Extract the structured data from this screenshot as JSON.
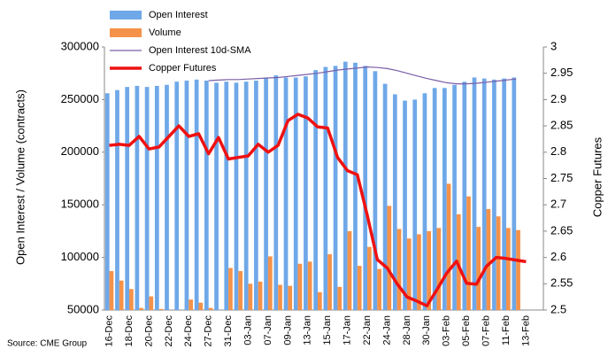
{
  "chart_data": {
    "type": "bar-line",
    "source": "Source: CME Group",
    "ylabel": "Open Interest / Volume (contracts)",
    "y2label": "Copper Futures",
    "categories": [
      "16-Dec",
      null,
      "18-Dec",
      null,
      "20-Dec",
      null,
      "22-Dec",
      null,
      "24-Dec",
      null,
      "27-Dec",
      null,
      "31-Dec",
      null,
      "03-Jan",
      null,
      "07-Jan",
      null,
      "09-Jan",
      null,
      "13-Jan",
      null,
      "15-Jan",
      null,
      "17-Jan",
      null,
      "22-Jan",
      null,
      "24-Jan",
      null,
      "28-Jan",
      null,
      "30-Jan",
      null,
      "03-Feb",
      null,
      "05-Feb",
      null,
      "07-Feb",
      null,
      "11-Feb",
      null,
      "13-Feb"
    ],
    "ylim": [
      50000,
      300000
    ],
    "yticks": [
      50000,
      100000,
      150000,
      200000,
      250000,
      300000
    ],
    "y2lim": [
      2.5,
      3
    ],
    "y2ticks": [
      2.5,
      2.55,
      2.6,
      2.65,
      2.7,
      2.75,
      2.8,
      2.85,
      2.9,
      2.95,
      3
    ],
    "legend": "top-left",
    "series": [
      {
        "name": "Open Interest",
        "kind": "bar",
        "color": "#6fa8e8",
        "values": [
          256000,
          259000,
          262000,
          263000,
          262000,
          263000,
          264000,
          267000,
          268000,
          269000,
          268000,
          266000,
          267000,
          266000,
          267000,
          268000,
          271000,
          273000,
          271000,
          271000,
          272000,
          278000,
          281000,
          282000,
          286000,
          285000,
          282000,
          277000,
          265000,
          255000,
          249000,
          250000,
          256000,
          261000,
          261000,
          264000,
          267000,
          271000,
          270000,
          269000,
          270000,
          271000,
          null
        ]
      },
      {
        "name": "Volume",
        "kind": "bar",
        "color": "#f4924a",
        "values": [
          87000,
          78000,
          70000,
          52000,
          63000,
          51000,
          50000,
          50000,
          60000,
          57000,
          52000,
          50000,
          90000,
          87000,
          75000,
          77000,
          101000,
          74000,
          73000,
          94000,
          96000,
          67000,
          103000,
          72000,
          125000,
          92000,
          110000,
          89000,
          149000,
          127000,
          118000,
          122000,
          125000,
          128000,
          170000,
          141000,
          158000,
          129000,
          146000,
          139000,
          128000,
          126000,
          null
        ]
      },
      {
        "name": "Open Interest 10d-SMA",
        "kind": "line",
        "color": "#7b5ea7",
        "values": [
          null,
          null,
          null,
          null,
          null,
          null,
          null,
          null,
          null,
          null,
          268000,
          268500,
          269000,
          269000,
          269500,
          270000,
          270500,
          271000,
          272000,
          273000,
          274000,
          275000,
          276500,
          278000,
          279000,
          280000,
          281000,
          280500,
          279500,
          277500,
          275000,
          272500,
          270000,
          268000,
          266000,
          265000,
          265000,
          265500,
          266500,
          267500,
          268500,
          269500,
          null
        ]
      },
      {
        "name": "Copper Futures",
        "kind": "line",
        "axis": "y2",
        "color": "#ee1111",
        "values": [
          2.813,
          2.815,
          2.813,
          2.83,
          2.806,
          2.81,
          2.83,
          2.85,
          2.83,
          2.835,
          2.797,
          2.828,
          2.787,
          2.79,
          2.793,
          2.815,
          2.8,
          2.813,
          2.86,
          2.872,
          2.865,
          2.848,
          2.846,
          2.79,
          2.765,
          2.757,
          2.68,
          2.596,
          2.58,
          2.55,
          2.525,
          2.517,
          2.508,
          2.538,
          2.57,
          2.593,
          2.551,
          2.549,
          2.583,
          2.6,
          2.598,
          2.595,
          2.592
        ]
      }
    ]
  }
}
